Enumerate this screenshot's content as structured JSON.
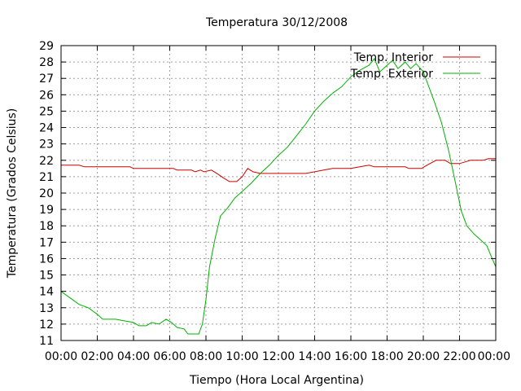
{
  "chart_data": {
    "type": "line",
    "title": "Temperatura 30/12/2008",
    "xlabel": "Tiempo (Hora Local Argentina)",
    "ylabel": "Temperatura (Grados Celsius)",
    "xlim": [
      0,
      24
    ],
    "ylim": [
      11,
      29
    ],
    "x_tick_labels": [
      "00:00",
      "02:00",
      "04:00",
      "06:00",
      "08:00",
      "10:00",
      "12:00",
      "14:00",
      "16:00",
      "18:00",
      "20:00",
      "22:00",
      "00:00"
    ],
    "y_ticks": [
      11,
      12,
      13,
      14,
      15,
      16,
      17,
      18,
      19,
      20,
      21,
      22,
      23,
      24,
      25,
      26,
      27,
      28,
      29
    ],
    "grid": true,
    "legend_position": "top-right",
    "series": [
      {
        "name": "Temp. Interior",
        "color": "#cc0000",
        "points": [
          [
            0,
            21.7
          ],
          [
            1.0,
            21.7
          ],
          [
            1.3,
            21.6
          ],
          [
            3.8,
            21.6
          ],
          [
            4.0,
            21.5
          ],
          [
            6.2,
            21.5
          ],
          [
            6.4,
            21.4
          ],
          [
            7.2,
            21.4
          ],
          [
            7.4,
            21.3
          ],
          [
            7.7,
            21.4
          ],
          [
            7.9,
            21.3
          ],
          [
            8.3,
            21.4
          ],
          [
            8.6,
            21.2
          ],
          [
            9.0,
            20.9
          ],
          [
            9.3,
            20.7
          ],
          [
            9.7,
            20.7
          ],
          [
            10.0,
            21.0
          ],
          [
            10.3,
            21.5
          ],
          [
            10.6,
            21.3
          ],
          [
            11.0,
            21.2
          ],
          [
            13.0,
            21.2
          ],
          [
            13.5,
            21.2
          ],
          [
            14.0,
            21.3
          ],
          [
            14.5,
            21.4
          ],
          [
            15.0,
            21.5
          ],
          [
            16.0,
            21.5
          ],
          [
            16.5,
            21.6
          ],
          [
            17.0,
            21.7
          ],
          [
            17.3,
            21.6
          ],
          [
            19.0,
            21.6
          ],
          [
            19.2,
            21.5
          ],
          [
            19.9,
            21.5
          ],
          [
            20.2,
            21.7
          ],
          [
            20.7,
            22.0
          ],
          [
            21.2,
            22.0
          ],
          [
            21.5,
            21.8
          ],
          [
            22.0,
            21.8
          ],
          [
            22.3,
            21.9
          ],
          [
            22.6,
            22.0
          ],
          [
            23.3,
            22.0
          ],
          [
            23.6,
            22.1
          ],
          [
            24.0,
            22.1
          ]
        ]
      },
      {
        "name": "Temp. Exterior",
        "color": "#00b000",
        "points": [
          [
            0,
            14.0
          ],
          [
            0.5,
            13.6
          ],
          [
            1.0,
            13.2
          ],
          [
            1.5,
            13.0
          ],
          [
            2.0,
            12.6
          ],
          [
            2.3,
            12.3
          ],
          [
            3.0,
            12.3
          ],
          [
            3.5,
            12.2
          ],
          [
            4.0,
            12.1
          ],
          [
            4.3,
            11.9
          ],
          [
            4.7,
            11.9
          ],
          [
            5.0,
            12.1
          ],
          [
            5.4,
            12.0
          ],
          [
            5.8,
            12.3
          ],
          [
            6.1,
            12.1
          ],
          [
            6.4,
            11.8
          ],
          [
            6.8,
            11.7
          ],
          [
            7.0,
            11.4
          ],
          [
            7.6,
            11.4
          ],
          [
            7.8,
            12.0
          ],
          [
            8.0,
            13.5
          ],
          [
            8.2,
            15.5
          ],
          [
            8.5,
            17.2
          ],
          [
            8.8,
            18.6
          ],
          [
            9.2,
            19.1
          ],
          [
            9.6,
            19.7
          ],
          [
            10.0,
            20.1
          ],
          [
            10.5,
            20.6
          ],
          [
            11.0,
            21.2
          ],
          [
            11.5,
            21.7
          ],
          [
            12.0,
            22.3
          ],
          [
            12.5,
            22.8
          ],
          [
            13.0,
            23.5
          ],
          [
            13.5,
            24.2
          ],
          [
            14.0,
            25.0
          ],
          [
            14.5,
            25.6
          ],
          [
            15.0,
            26.1
          ],
          [
            15.5,
            26.5
          ],
          [
            16.0,
            27.1
          ],
          [
            16.5,
            27.5
          ],
          [
            17.0,
            27.8
          ],
          [
            17.3,
            28.2
          ],
          [
            17.6,
            27.4
          ],
          [
            18.0,
            27.8
          ],
          [
            18.3,
            28.1
          ],
          [
            18.6,
            27.6
          ],
          [
            19.0,
            28.0
          ],
          [
            19.3,
            27.6
          ],
          [
            19.6,
            27.9
          ],
          [
            20.0,
            27.4
          ],
          [
            20.3,
            26.5
          ],
          [
            20.6,
            25.6
          ],
          [
            21.0,
            24.3
          ],
          [
            21.4,
            22.6
          ],
          [
            21.8,
            20.5
          ],
          [
            22.1,
            18.9
          ],
          [
            22.4,
            18.0
          ],
          [
            22.8,
            17.5
          ],
          [
            23.2,
            17.1
          ],
          [
            23.5,
            16.8
          ],
          [
            23.8,
            16.0
          ],
          [
            24.0,
            15.5
          ]
        ]
      }
    ]
  }
}
